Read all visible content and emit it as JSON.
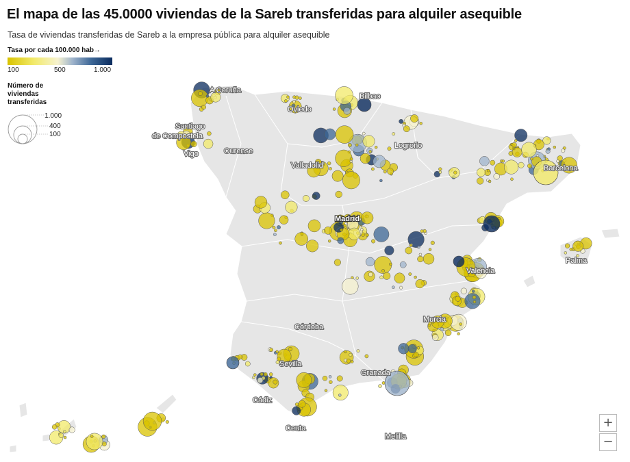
{
  "title": "El mapa de las 45.0000 viviendas de la Sareb transferidas para alquiler asequible",
  "subtitle": "Tasa de viviendas transferidas de Sareb a la empresa pública para alquiler asequible",
  "legend_rate": {
    "title": "Tasa por cada 100.000 hab→",
    "min_label": "100",
    "mid_label": "500",
    "max_label": "1.000",
    "colors": [
      "#d9c300",
      "#f2ea6a",
      "#f6f2cf",
      "#9fb4cc",
      "#3d6796",
      "#0b2c5e"
    ]
  },
  "legend_size": {
    "title": "Número de viviendas transferidas",
    "values": [
      "1.000",
      "400",
      "100"
    ]
  },
  "cities": {
    "coruna": "A Coruña",
    "santiago_1": "Santiago",
    "santiago_2": "de Compostela",
    "vigo": "Vigo",
    "ourense": "Ourense",
    "oviedo": "Oviedo",
    "bilbao": "Bilbao",
    "logrono": "Logroño",
    "valladolid": "Valladolid",
    "barcelona": "Barcelona",
    "madrid": "Madrid",
    "valencia": "Valencia",
    "palma": "Palma",
    "murcia": "Murcia",
    "cordoba": "Córdoba",
    "sevilla": "Sevilla",
    "granada": "Granada",
    "cadiz": "Cádiz",
    "ceuta": "Ceuta",
    "melilla": "Melilla"
  },
  "zoom": {
    "in": "+",
    "out": "−"
  },
  "map_colors": {
    "land": "#e6e6e6",
    "border": "#ffffff",
    "sea": "#ffffff"
  }
}
